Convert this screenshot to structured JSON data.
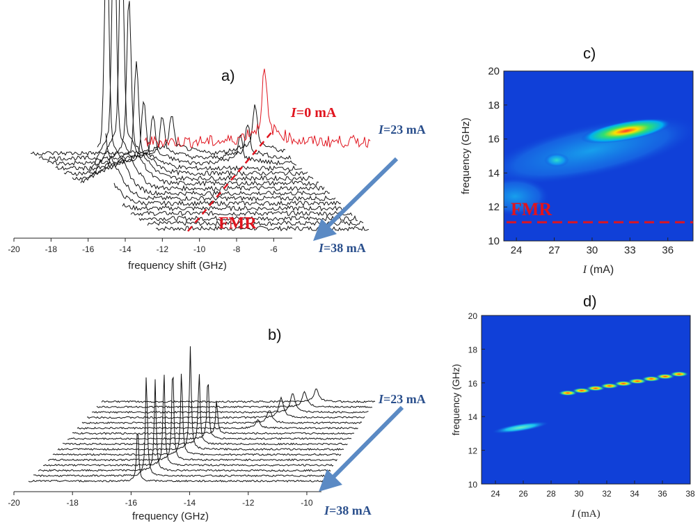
{
  "panel_labels": {
    "a": "a)",
    "b": "b)",
    "c": "c)",
    "d": "d)"
  },
  "colors": {
    "zero_current": "#e0141e",
    "annotation_blue": "#2a4f8c",
    "arrow": "#5b8ac4",
    "fmr": "#e0141e",
    "heatmap_bg": "#1040d8"
  },
  "chart_data": [
    {
      "id": "a",
      "type": "line",
      "subtype": "waterfall",
      "xlabel": "frequency shift (GHz)",
      "xlim": [
        -20,
        -5
      ],
      "xticks": [
        -20,
        -18,
        -16,
        -14,
        -12,
        -10,
        -8,
        -6
      ],
      "series": [
        {
          "current_mA": 0,
          "peaks": [
            {
              "f": -6.5,
              "h": 1.0
            }
          ]
        },
        {
          "current_mA": 23,
          "peaks": [
            {
              "f": -11.5,
              "h": 0.55
            },
            {
              "f": -7.0,
              "h": 0.7
            }
          ]
        },
        {
          "current_mA": 24,
          "peaks": [
            {
              "f": -12.0,
              "h": 0.6
            },
            {
              "f": -7.4,
              "h": 0.5
            }
          ]
        },
        {
          "current_mA": 25,
          "peaks": [
            {
              "f": -12.5,
              "h": 0.7
            },
            {
              "f": -7.8,
              "h": 0.4
            }
          ]
        },
        {
          "current_mA": 26,
          "peaks": [
            {
              "f": -13.0,
              "h": 1.0
            }
          ]
        },
        {
          "current_mA": 27,
          "peaks": [
            {
              "f": -13.4,
              "h": 1.6
            }
          ]
        },
        {
          "current_mA": 28,
          "peaks": [
            {
              "f": -13.8,
              "h": 2.6
            }
          ]
        },
        {
          "current_mA": 29,
          "peaks": [
            {
              "f": -14.2,
              "h": 3.8
            }
          ]
        },
        {
          "current_mA": 30,
          "peaks": [
            {
              "f": -14.6,
              "h": 4.0
            }
          ]
        },
        {
          "current_mA": 31,
          "peaks": [
            {
              "f": -15.0,
              "h": 3.9
            }
          ]
        },
        {
          "current_mA": 32,
          "peaks": [
            {
              "f": -15.3,
              "h": 3.6
            }
          ]
        },
        {
          "current_mA": 33,
          "peaks": [
            {
              "f": -15.6,
              "h": 2.8
            }
          ]
        },
        {
          "current_mA": 34,
          "peaks": [
            {
              "f": -15.9,
              "h": 2.0
            }
          ]
        },
        {
          "current_mA": 35,
          "peaks": [
            {
              "f": -16.2,
              "h": 1.3
            }
          ]
        },
        {
          "current_mA": 36,
          "peaks": [
            {
              "f": -16.5,
              "h": 0.8
            }
          ]
        },
        {
          "current_mA": 37,
          "peaks": [
            {
              "f": -16.8,
              "h": 0.6
            }
          ]
        },
        {
          "current_mA": 38,
          "peaks": [
            {
              "f": -17.1,
              "h": 0.5
            }
          ]
        }
      ],
      "annotations": [
        {
          "text_italic": "I",
          "text": "=0 mA",
          "color": "red"
        },
        {
          "text_italic": "I",
          "text": "=23 mA",
          "color": "blue"
        },
        {
          "text_italic": "I",
          "text": "=38 mA",
          "color": "blue"
        },
        {
          "text": "FMR",
          "color": "red"
        }
      ]
    },
    {
      "id": "b",
      "type": "line",
      "subtype": "waterfall",
      "xlabel": "frequency (GHz)",
      "xlim": [
        -20,
        -9.5
      ],
      "xticks": [
        -20,
        -18,
        -16,
        -14,
        -12,
        -10
      ],
      "series": [
        {
          "current_mA": 23,
          "f": -10.2,
          "h": 0.3
        },
        {
          "current_mA": 24,
          "f": -10.6,
          "h": 0.35
        },
        {
          "current_mA": 25,
          "f": -11.0,
          "h": 0.45
        },
        {
          "current_mA": 26,
          "f": -11.4,
          "h": 0.45
        },
        {
          "current_mA": 27,
          "f": -11.8,
          "h": 0.3
        },
        {
          "current_mA": 28,
          "f": -12.2,
          "h": 0.2
        },
        {
          "current_mA": 29,
          "f": -13.6,
          "h": 0.8
        },
        {
          "current_mA": 30,
          "f": -13.9,
          "h": 1.5
        },
        {
          "current_mA": 31,
          "f": -14.2,
          "h": 1.7
        },
        {
          "current_mA": 32,
          "f": -14.5,
          "h": 2.4
        },
        {
          "current_mA": 33,
          "f": -14.8,
          "h": 2.0
        },
        {
          "current_mA": 34,
          "f": -15.1,
          "h": 2.3
        },
        {
          "current_mA": 35,
          "f": -15.4,
          "h": 2.2
        },
        {
          "current_mA": 36,
          "f": -15.7,
          "h": 2.1
        },
        {
          "current_mA": 37,
          "f": -16.0,
          "h": 2.4
        },
        {
          "current_mA": 38,
          "f": -16.3,
          "h": 1.3
        }
      ],
      "annotations": [
        {
          "text_italic": "I",
          "text": "=23 mA"
        },
        {
          "text_italic": "I",
          "text": "=38 mA"
        }
      ]
    },
    {
      "id": "c",
      "type": "heatmap",
      "xlabel_italic": "I",
      "xlabel": " (mA)",
      "ylabel": "frequency (GHz)",
      "xlim": [
        23,
        38
      ],
      "ylim": [
        10,
        20
      ],
      "xticks": [
        24,
        27,
        30,
        33,
        36
      ],
      "yticks": [
        10,
        12,
        14,
        16,
        18,
        20
      ],
      "fmr_line_GHz": 11.1,
      "fmr_label": "FMR"
    },
    {
      "id": "d",
      "type": "heatmap",
      "xlabel_italic": "I",
      "xlabel": " (mA)",
      "ylabel": "frequency (GHz)",
      "xlim": [
        23,
        38
      ],
      "ylim": [
        10,
        20
      ],
      "xticks": [
        24,
        26,
        28,
        30,
        32,
        34,
        36,
        38
      ],
      "yticks": [
        10,
        12,
        14,
        16,
        18,
        20
      ]
    }
  ]
}
